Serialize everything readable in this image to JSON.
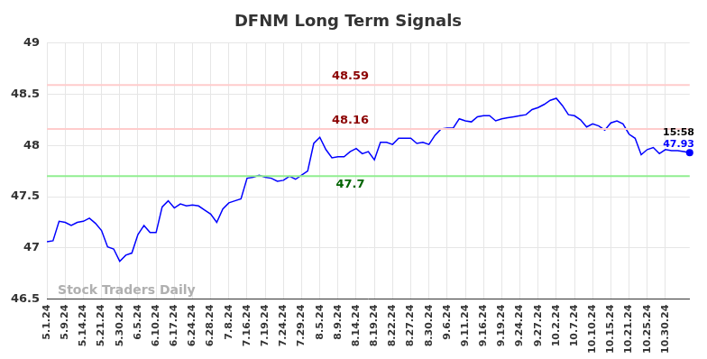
{
  "chart_data": {
    "type": "line",
    "title": "DFNM Long Term Signals",
    "color": "#0000ff",
    "grid": true,
    "categories": [
      "5.1.24",
      null,
      null,
      "5.9.24",
      null,
      null,
      "5.14.24",
      null,
      null,
      "5.21.24",
      null,
      null,
      "5.30.24",
      null,
      null,
      "6.5.24",
      null,
      null,
      "6.10.24",
      null,
      null,
      "6.17.24",
      null,
      null,
      "6.24.24",
      null,
      null,
      "6.28.24",
      null,
      null,
      "7.8.24",
      null,
      null,
      "7.16.24",
      null,
      null,
      "7.19.24",
      null,
      null,
      "7.24.24",
      null,
      null,
      "7.29.24",
      null,
      null,
      "8.5.24",
      null,
      null,
      "8.9.24",
      null,
      null,
      "8.14.24",
      null,
      null,
      "8.19.24",
      null,
      null,
      "8.22.24",
      null,
      null,
      "8.27.24",
      null,
      null,
      "8.30.24",
      null,
      null,
      "9.6.24",
      null,
      null,
      "9.11.24",
      null,
      null,
      "9.16.24",
      null,
      null,
      "9.19.24",
      null,
      null,
      "9.24.24",
      null,
      null,
      "9.27.24",
      null,
      null,
      "10.2.24",
      null,
      null,
      "10.7.24",
      null,
      null,
      "10.10.24",
      null,
      null,
      "10.15.24",
      null,
      null,
      "10.21.24",
      null,
      null,
      "10.25.24",
      null,
      null,
      "10.30.24",
      null,
      null,
      null,
      null
    ],
    "values": [
      47.06,
      47.07,
      47.26,
      47.25,
      47.22,
      47.25,
      47.26,
      47.29,
      47.24,
      47.17,
      47.01,
      46.99,
      46.87,
      46.93,
      46.95,
      47.13,
      47.22,
      47.15,
      47.15,
      47.4,
      47.46,
      47.39,
      47.43,
      47.41,
      47.42,
      47.41,
      47.37,
      47.33,
      47.25,
      47.38,
      47.44,
      47.46,
      47.48,
      47.68,
      47.69,
      47.71,
      47.69,
      47.68,
      47.65,
      47.66,
      47.7,
      47.67,
      47.71,
      47.75,
      48.02,
      48.08,
      47.96,
      47.88,
      47.89,
      47.89,
      47.94,
      47.97,
      47.92,
      47.94,
      47.86,
      48.03,
      48.03,
      48.01,
      48.07,
      48.07,
      48.07,
      48.02,
      48.03,
      48.01,
      48.1,
      48.16,
      48.17,
      48.17,
      48.26,
      48.24,
      48.23,
      48.28,
      48.29,
      48.29,
      48.24,
      48.26,
      48.27,
      48.28,
      48.29,
      48.3,
      48.35,
      48.37,
      48.4,
      48.44,
      48.46,
      48.39,
      48.3,
      48.29,
      48.25,
      48.18,
      48.21,
      48.19,
      48.15,
      48.22,
      48.24,
      48.21,
      48.11,
      48.07,
      47.91,
      47.96,
      47.98,
      47.92,
      47.96,
      47.95,
      47.95,
      47.94,
      47.93
    ],
    "ylim": [
      46.5,
      49
    ],
    "yticks": [
      46.5,
      47,
      47.5,
      48,
      48.5,
      49
    ],
    "reference_lines": [
      {
        "value": 48.59,
        "label": "48.59",
        "color": "#ffcccc",
        "label_color": "#8b0000"
      },
      {
        "value": 48.16,
        "label": "48.16",
        "color": "#ffcccc",
        "label_color": "#8b0000"
      },
      {
        "value": 47.7,
        "label": "47.7",
        "color": "#90ee90",
        "label_color": "#006400"
      }
    ],
    "last_point_labels": [
      {
        "text": "15:58",
        "color": "#000000"
      },
      {
        "text": "47.93",
        "color": "#0000ff"
      }
    ],
    "watermark": "Stock Traders Daily"
  }
}
